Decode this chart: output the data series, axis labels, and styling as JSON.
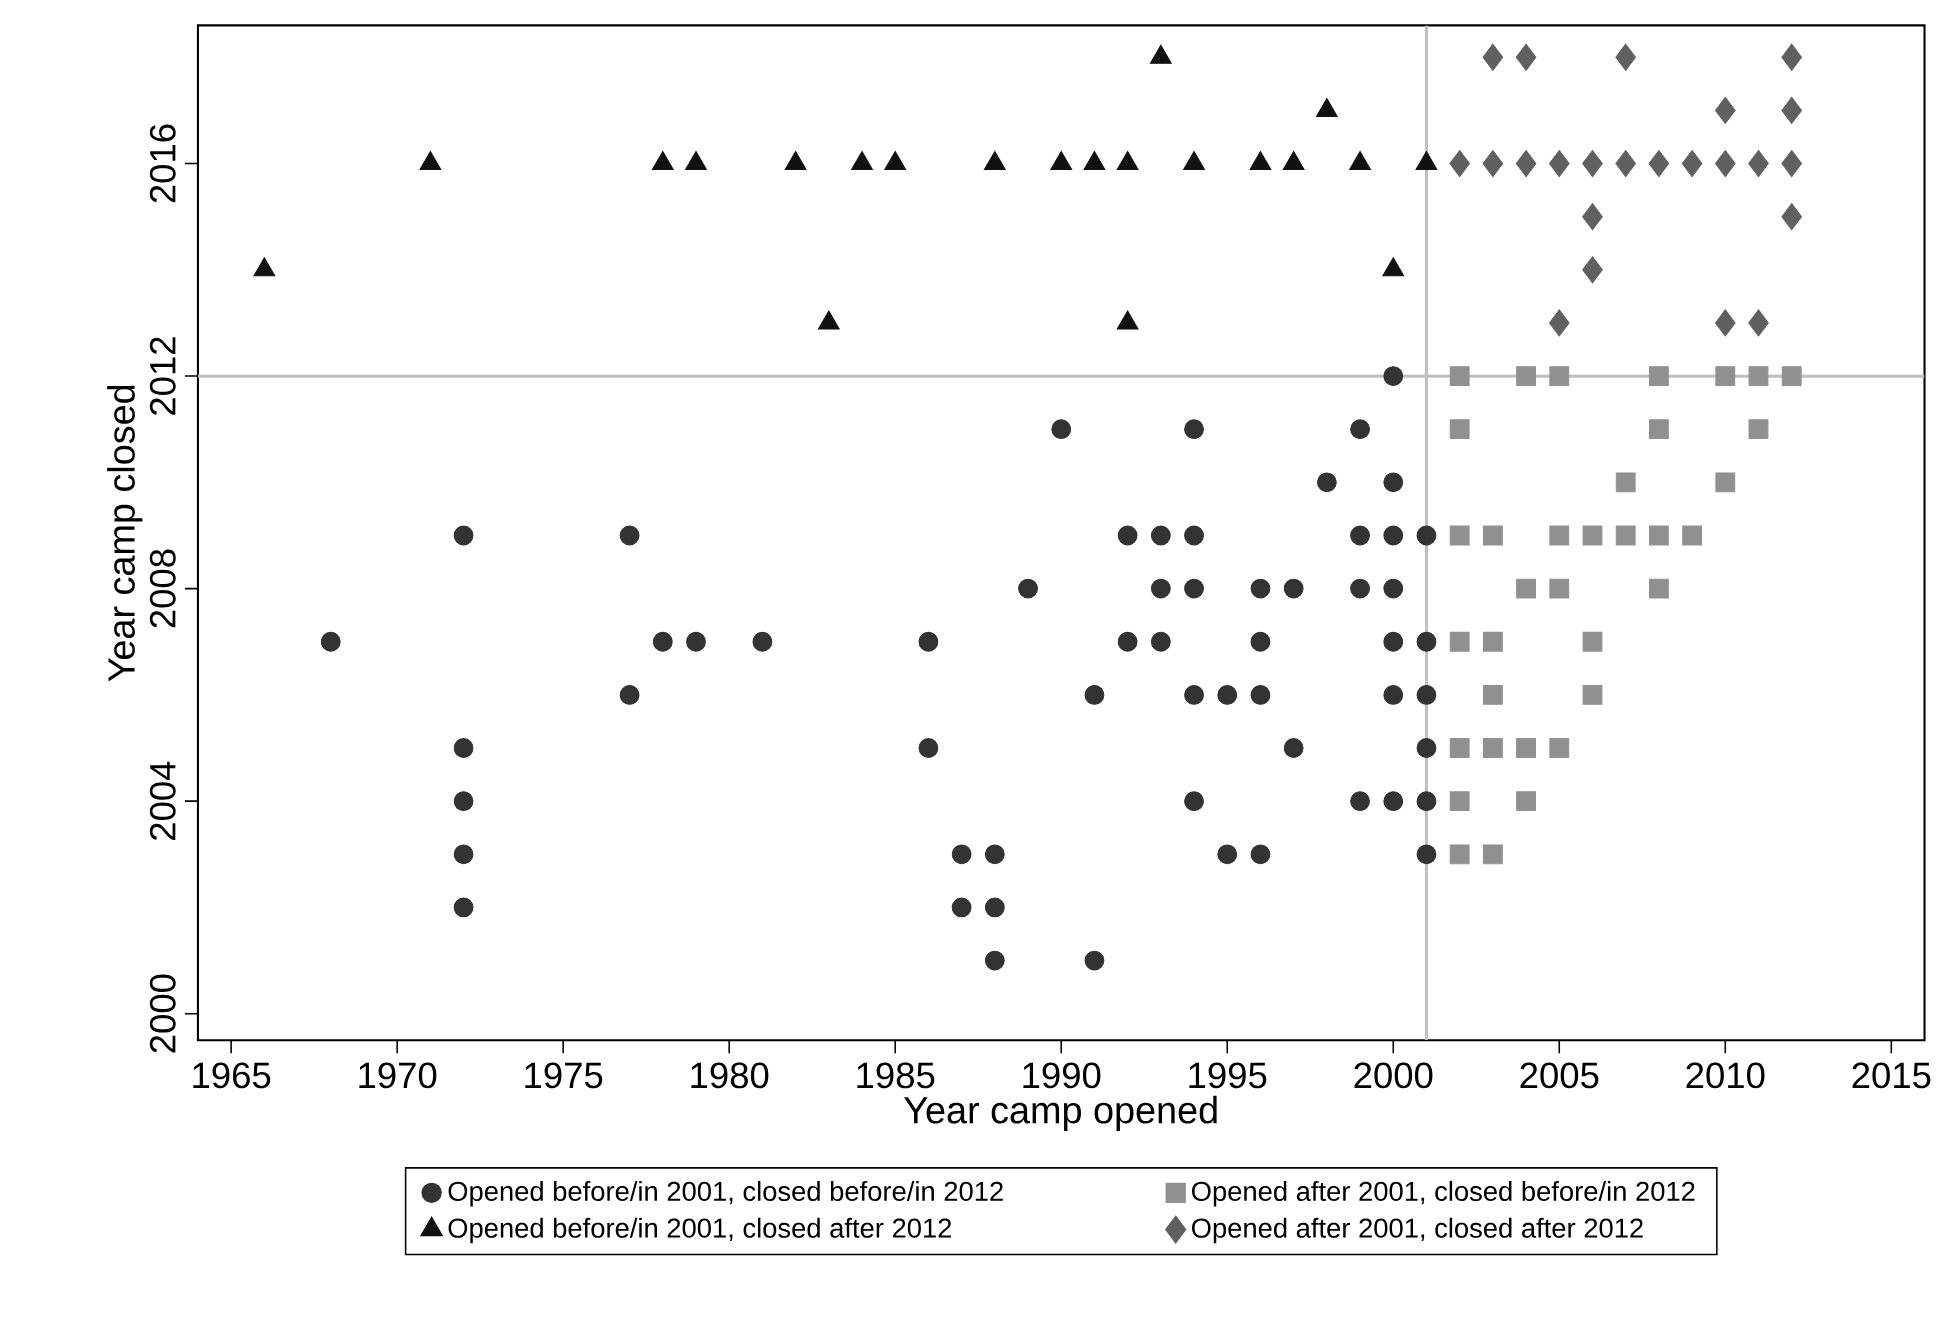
{
  "chart_data": {
    "type": "scatter",
    "xlabel": "Year camp opened",
    "ylabel": "Year camp closed",
    "xlim": [
      1964,
      2016
    ],
    "ylim": [
      1999.5,
      2018.6
    ],
    "xticks": [
      1965,
      1970,
      1975,
      1980,
      1985,
      1990,
      1995,
      2000,
      2005,
      2010,
      2015
    ],
    "yticks": [
      2000,
      2004,
      2008,
      2012,
      2016
    ],
    "grid": false,
    "legend": "bottom",
    "ref_lines": [
      {
        "axis": "x",
        "value": 2001,
        "color": "#c0c0c0"
      },
      {
        "axis": "y",
        "value": 2012,
        "color": "#c0c0c0"
      }
    ],
    "series": [
      {
        "name": "Opened before/in 2001, closed before/in 2012",
        "color": "#333333",
        "marker": "circle",
        "x": [
          1968,
          1972,
          1972,
          1972,
          1972,
          1972,
          1977,
          1977,
          1978,
          1979,
          1981,
          1986,
          1986,
          1987,
          1987,
          1988,
          1988,
          1988,
          1989,
          1990,
          1991,
          1991,
          1992,
          1992,
          1993,
          1993,
          1993,
          1994,
          1994,
          1994,
          1994,
          1994,
          1995,
          1995,
          1996,
          1996,
          1996,
          1996,
          1997,
          1997,
          1998,
          1999,
          1999,
          1999,
          1999,
          2000,
          2000,
          2000,
          2000,
          2000,
          2000,
          2000,
          2001,
          2001,
          2001,
          2001,
          2001,
          2001
        ],
        "values": [
          2007,
          2009,
          2005,
          2004,
          2003,
          2002,
          2009,
          2006,
          2007,
          2007,
          2007,
          2007,
          2005,
          2003,
          2002,
          2003,
          2002,
          2001,
          2008,
          2011,
          2006,
          2001,
          2009,
          2007,
          2009,
          2008,
          2007,
          2011,
          2009,
          2008,
          2006,
          2004,
          2006,
          2003,
          2008,
          2007,
          2006,
          2003,
          2008,
          2005,
          2010,
          2011,
          2009,
          2008,
          2004,
          2012,
          2010,
          2009,
          2008,
          2007,
          2006,
          2004,
          2009,
          2007,
          2006,
          2005,
          2004,
          2003
        ]
      },
      {
        "name": "Opened after 2001, closed before/in 2012",
        "color": "#909090",
        "marker": "square",
        "x": [
          2002,
          2004,
          2005,
          2008,
          2010,
          2011,
          2012,
          2002,
          2008,
          2011,
          2007,
          2010,
          2002,
          2003,
          2005,
          2006,
          2007,
          2008,
          2009,
          2004,
          2005,
          2008,
          2002,
          2003,
          2006,
          2003,
          2006,
          2002,
          2003,
          2004,
          2005,
          2002,
          2004,
          2002,
          2003
        ],
        "values": [
          2012,
          2012,
          2012,
          2012,
          2012,
          2012,
          2012,
          2011,
          2011,
          2011,
          2010,
          2010,
          2009,
          2009,
          2009,
          2009,
          2009,
          2009,
          2009,
          2008,
          2008,
          2008,
          2007,
          2007,
          2007,
          2006,
          2006,
          2005,
          2005,
          2005,
          2005,
          2004,
          2004,
          2003,
          2003
        ]
      },
      {
        "name": "Opened before/in 2001, closed after 2012",
        "color": "#111111",
        "marker": "triangle",
        "x": [
          1966,
          1971,
          1978,
          1979,
          1982,
          1983,
          1984,
          1985,
          1988,
          1990,
          1991,
          1992,
          1992,
          1993,
          1994,
          1996,
          1997,
          1998,
          1999,
          2000,
          2001
        ],
        "values": [
          2014,
          2016,
          2016,
          2016,
          2016,
          2013,
          2016,
          2016,
          2016,
          2016,
          2016,
          2016,
          2013,
          2018,
          2016,
          2016,
          2016,
          2017,
          2016,
          2014,
          2016
        ]
      },
      {
        "name": "Opened after 2001, closed after 2012",
        "color": "#606060",
        "marker": "diamond",
        "x": [
          2003,
          2004,
          2007,
          2012,
          2010,
          2012,
          2002,
          2003,
          2004,
          2005,
          2006,
          2007,
          2008,
          2009,
          2010,
          2011,
          2012,
          2006,
          2012,
          2006,
          2005,
          2010,
          2011
        ],
        "values": [
          2018,
          2018,
          2018,
          2018,
          2017,
          2017,
          2016,
          2016,
          2016,
          2016,
          2016,
          2016,
          2016,
          2016,
          2016,
          2016,
          2016,
          2015,
          2015,
          2014,
          2013,
          2013,
          2013
        ]
      }
    ]
  }
}
